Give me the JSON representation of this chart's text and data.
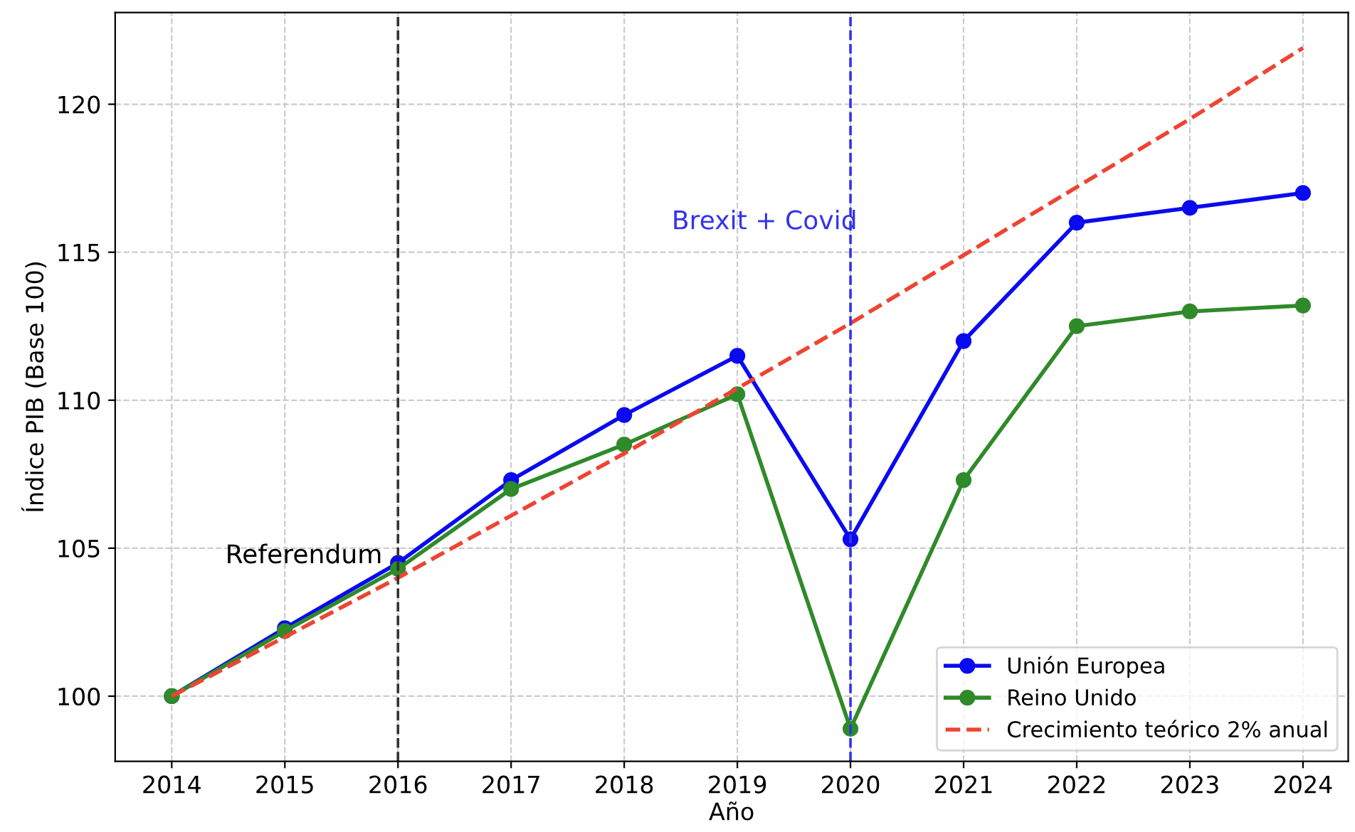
{
  "chart_data": {
    "type": "line",
    "xlabel": "Año",
    "ylabel": "Índice PIB (Base 100)",
    "x": [
      2014,
      2015,
      2016,
      2017,
      2018,
      2019,
      2020,
      2021,
      2022,
      2023,
      2024
    ],
    "series": [
      {
        "name": "Unión Europea",
        "color": "#0a0af0",
        "marker": "circle",
        "line_style": "solid",
        "values": [
          100,
          102.3,
          104.5,
          107.3,
          109.5,
          111.5,
          105.3,
          112,
          116,
          116.5,
          117
        ]
      },
      {
        "name": "Reino Unido",
        "color": "#2f8a2a",
        "marker": "circle",
        "line_style": "solid",
        "values": [
          100,
          102.2,
          104.3,
          107,
          108.5,
          110.2,
          98.9,
          107.3,
          112.5,
          113,
          113.2
        ]
      },
      {
        "name": "Crecimiento teórico 2% anual",
        "color": "#ee4433",
        "marker": "none",
        "line_style": "dashed",
        "values": [
          100,
          102,
          104,
          106.1,
          108.2,
          110.4,
          112.6,
          114.9,
          117.2,
          119.5,
          121.9
        ]
      }
    ],
    "xlim": [
      2013.5,
      2024.4
    ],
    "ylim": [
      97.8,
      123.1
    ],
    "xticks": [
      2014,
      2015,
      2016,
      2017,
      2018,
      2019,
      2020,
      2021,
      2022,
      2023,
      2024
    ],
    "yticks": [
      100,
      105,
      110,
      115,
      120
    ],
    "ref_lines": [
      {
        "axis": "x",
        "value": 2016,
        "color": "#333333",
        "line_style": "dashed",
        "label": "Referendum"
      },
      {
        "axis": "x",
        "value": 2020,
        "color": "#3333ee",
        "line_style": "dashed",
        "label": "Brexit + Covid"
      }
    ],
    "grid": true,
    "legend": "bottom right"
  }
}
